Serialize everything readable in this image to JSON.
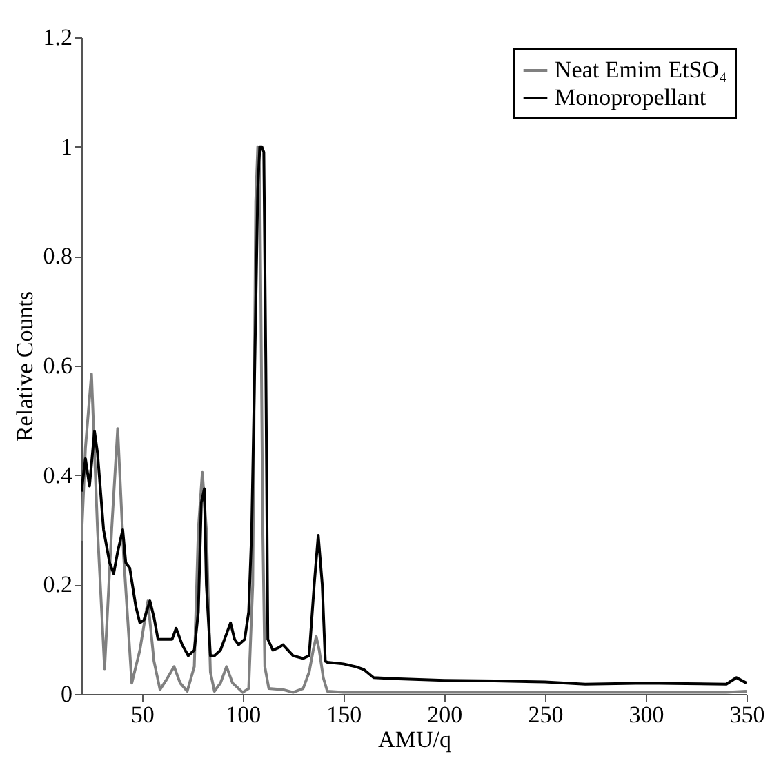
{
  "chart_data": {
    "type": "line",
    "xlabel": "AMU/q",
    "ylabel": "Relative Counts",
    "xlim": [
      20,
      350
    ],
    "xticks": [
      50,
      100,
      150,
      200,
      250,
      300,
      350
    ],
    "ylim": [
      0,
      1.2
    ],
    "yticks": [
      0,
      0.2,
      0.4,
      0.6,
      0.8,
      1,
      1.2
    ],
    "grid": false,
    "legend": "top right",
    "marker": "none",
    "line_style": "solid",
    "series": [
      {
        "name": "Neat Emim EtSO₄",
        "color": "#808080",
        "x": [
          20,
          22,
          25,
          28,
          31.5,
          35,
          38,
          41,
          45,
          49,
          53,
          56,
          59,
          62,
          66,
          69,
          72.5,
          76,
          78,
          80,
          82,
          84,
          86,
          89,
          92,
          95,
          100,
          103,
          105,
          106.5,
          107.5,
          108.5,
          110,
          111,
          113,
          120,
          125,
          130,
          133,
          135,
          136.5,
          138,
          140,
          142,
          150,
          200,
          250,
          300,
          340,
          350
        ],
        "values": [
          0.28,
          0.45,
          0.585,
          0.3,
          0.046,
          0.3,
          0.485,
          0.25,
          0.02,
          0.08,
          0.17,
          0.06,
          0.008,
          0.025,
          0.05,
          0.02,
          0.005,
          0.05,
          0.3,
          0.405,
          0.3,
          0.04,
          0.005,
          0.02,
          0.05,
          0.02,
          0.003,
          0.01,
          0.2,
          0.9,
          1.0,
          0.95,
          0.3,
          0.05,
          0.01,
          0.008,
          0.003,
          0.01,
          0.04,
          0.08,
          0.105,
          0.08,
          0.03,
          0.005,
          0.003,
          0.003,
          0.003,
          0.003,
          0.003,
          0.005
        ]
      },
      {
        "name": "Monopropellant",
        "color": "#000000",
        "x": [
          20,
          22,
          24,
          26.5,
          28,
          31,
          34,
          36,
          38,
          40.5,
          42,
          44,
          47,
          49,
          51,
          54,
          56,
          58,
          62,
          65,
          67,
          70,
          73,
          76,
          78,
          79.5,
          81,
          82,
          84,
          86,
          89,
          91,
          94,
          96,
          98,
          101,
          103,
          104.5,
          106,
          107.5,
          108.5,
          109.5,
          110.5,
          111.5,
          112.5,
          115,
          118,
          120,
          125,
          130,
          133,
          135.5,
          137.5,
          139.5,
          141,
          142,
          150,
          156,
          160,
          165,
          175,
          200,
          225,
          250,
          270,
          300,
          320,
          340,
          345,
          350
        ],
        "values": [
          0.37,
          0.43,
          0.38,
          0.48,
          0.44,
          0.3,
          0.24,
          0.22,
          0.26,
          0.3,
          0.24,
          0.23,
          0.16,
          0.13,
          0.135,
          0.17,
          0.14,
          0.1,
          0.1,
          0.1,
          0.12,
          0.09,
          0.07,
          0.08,
          0.15,
          0.35,
          0.375,
          0.2,
          0.07,
          0.07,
          0.08,
          0.1,
          0.13,
          0.1,
          0.09,
          0.1,
          0.15,
          0.3,
          0.6,
          0.92,
          1.0,
          1.0,
          0.99,
          0.6,
          0.1,
          0.08,
          0.085,
          0.09,
          0.07,
          0.065,
          0.07,
          0.2,
          0.29,
          0.2,
          0.06,
          0.058,
          0.055,
          0.05,
          0.045,
          0.03,
          0.028,
          0.025,
          0.024,
          0.022,
          0.018,
          0.02,
          0.019,
          0.018,
          0.03,
          0.02
        ]
      }
    ]
  }
}
